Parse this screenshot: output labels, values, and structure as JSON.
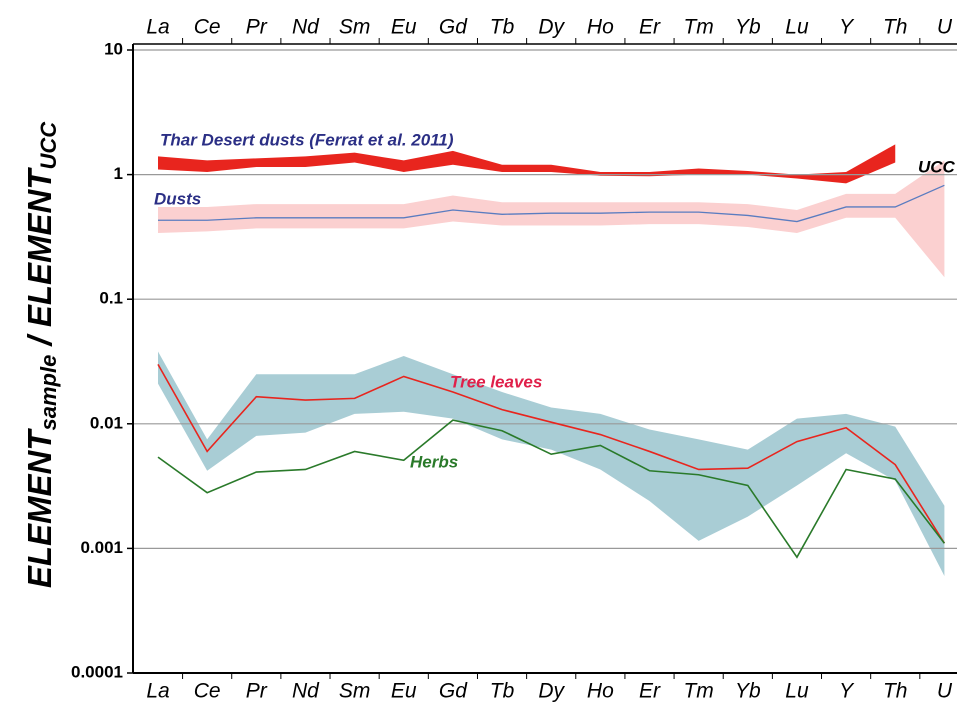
{
  "chart_data": {
    "type": "line",
    "y_label": [
      "ELEMENT",
      "sample",
      " / ELEMENT",
      "UCC"
    ],
    "categories": [
      "La",
      "Ce",
      "Pr",
      "Nd",
      "Sm",
      "Eu",
      "Gd",
      "Tb",
      "Dy",
      "Ho",
      "Er",
      "Tm",
      "Yb",
      "Lu",
      "Y",
      "Th",
      "U"
    ],
    "ylim": [
      0.0001,
      10
    ],
    "yticks": [
      10,
      1,
      0.1,
      0.01,
      0.001,
      0.0001
    ],
    "log_y": true,
    "grid": true,
    "reference_label": "UCC",
    "series": [
      {
        "name": "Thar Desert dusts (Ferrat et al. 2011)",
        "color": "#e8251e",
        "label_color": "#2b2f85",
        "low": [
          1.1,
          1.05,
          1.15,
          1.15,
          1.25,
          1.05,
          1.2,
          1.05,
          1.05,
          0.98,
          0.97,
          1.0,
          1.0,
          0.93,
          0.85,
          1.25,
          null
        ],
        "high": [
          1.4,
          1.3,
          1.35,
          1.4,
          1.5,
          1.3,
          1.55,
          1.2,
          1.2,
          1.05,
          1.05,
          1.12,
          1.07,
          1.0,
          1.05,
          1.75,
          null
        ]
      },
      {
        "name": "Dusts",
        "color": "#5a7cc0",
        "band_color": "#fbd0d0",
        "label_color": "#2b2f85",
        "values": [
          0.43,
          0.43,
          0.45,
          0.45,
          0.45,
          0.45,
          0.52,
          0.48,
          0.49,
          0.49,
          0.5,
          0.5,
          0.47,
          0.42,
          0.55,
          0.55,
          0.82
        ],
        "low": [
          0.34,
          0.35,
          0.37,
          0.37,
          0.37,
          0.37,
          0.42,
          0.39,
          0.39,
          0.39,
          0.4,
          0.4,
          0.38,
          0.34,
          0.45,
          0.45,
          0.15
        ],
        "high": [
          0.55,
          0.55,
          0.58,
          0.58,
          0.58,
          0.58,
          0.68,
          0.6,
          0.6,
          0.6,
          0.6,
          0.6,
          0.58,
          0.52,
          0.7,
          0.7,
          1.3
        ]
      },
      {
        "name": "Tree leaves",
        "color": "#e8251e",
        "band_color": "#a9cdd5",
        "label_color": "#e0204a",
        "values": [
          0.03,
          0.006,
          0.0165,
          0.0155,
          0.016,
          0.024,
          0.018,
          0.013,
          0.0103,
          0.0082,
          0.006,
          0.0043,
          0.0044,
          0.0072,
          0.0093,
          0.0047,
          0.0011
        ],
        "low": [
          0.021,
          0.0042,
          0.008,
          0.0085,
          0.012,
          0.0125,
          0.011,
          0.0075,
          0.0062,
          0.0043,
          0.0024,
          0.00115,
          0.0018,
          0.0032,
          0.0058,
          0.0035,
          0.0006
        ],
        "high": [
          0.038,
          0.0075,
          0.025,
          0.025,
          0.025,
          0.035,
          0.025,
          0.018,
          0.0135,
          0.012,
          0.009,
          0.0075,
          0.0062,
          0.011,
          0.012,
          0.0095,
          0.0022
        ]
      },
      {
        "name": "Herbs",
        "color": "#2a7a2a",
        "label_color": "#2a7a2a",
        "values": [
          0.0054,
          0.0028,
          0.0041,
          0.0043,
          0.006,
          0.0051,
          0.0107,
          0.0088,
          0.0057,
          0.0067,
          0.0042,
          0.0039,
          0.0032,
          0.00085,
          0.0043,
          0.0036,
          0.0011
        ]
      }
    ]
  }
}
